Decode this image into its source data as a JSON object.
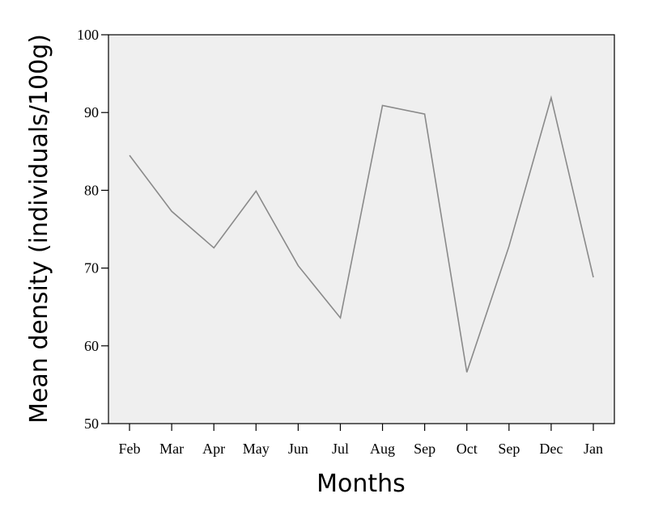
{
  "chart_data": {
    "type": "line",
    "title": "",
    "xlabel": "Months",
    "ylabel": "Mean density (individuals/100g)",
    "categories": [
      "Feb",
      "Mar",
      "Apr",
      "May",
      "Jun",
      "Jul",
      "Aug",
      "Sep",
      "Oct",
      "Sep",
      "Dec",
      "Jan"
    ],
    "series": [
      {
        "values": [
          84.5,
          77.3,
          72.6,
          79.9,
          70.3,
          63.6,
          90.9,
          89.8,
          56.6,
          72.8,
          91.9,
          68.8
        ]
      }
    ],
    "ylim": [
      50,
      100
    ],
    "yticks": [
      50,
      60,
      70,
      80,
      90,
      100
    ],
    "grid": false,
    "legend": "none",
    "colors": {
      "line": "#8a8a8a",
      "plot_background": "#efefef",
      "axis": "#000000"
    }
  }
}
